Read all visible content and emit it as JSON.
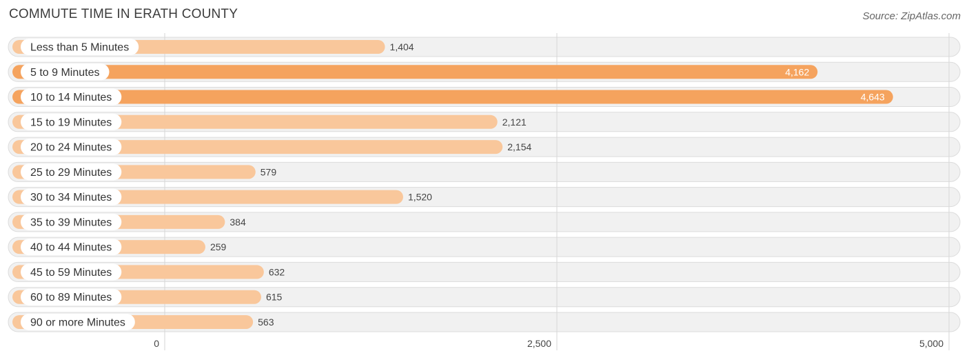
{
  "chart_data": {
    "type": "bar",
    "orientation": "horizontal",
    "title": "COMMUTE TIME IN ERATH COUNTY",
    "source": "Source: ZipAtlas.com",
    "categories": [
      "Less than 5 Minutes",
      "5 to 9 Minutes",
      "10 to 14 Minutes",
      "15 to 19 Minutes",
      "20 to 24 Minutes",
      "25 to 29 Minutes",
      "30 to 34 Minutes",
      "35 to 39 Minutes",
      "40 to 44 Minutes",
      "45 to 59 Minutes",
      "60 to 89 Minutes",
      "90 or more Minutes"
    ],
    "values": [
      1404,
      4162,
      4643,
      2121,
      2154,
      579,
      1520,
      384,
      259,
      632,
      615,
      563
    ],
    "value_labels": [
      "1,404",
      "4,162",
      "4,643",
      "2,121",
      "2,154",
      "579",
      "1,520",
      "384",
      "259",
      "632",
      "615",
      "563"
    ],
    "xlim": [
      0,
      5000
    ],
    "xticks": [
      0,
      2500,
      5000
    ],
    "xtick_labels": [
      "0",
      "2,500",
      "5,000"
    ],
    "xlabel": "",
    "ylabel": "",
    "grid": true,
    "colors": {
      "bar_light": "#f9c79b",
      "bar_strong": "#f5a35e",
      "row_background": "#f1f1f1"
    }
  }
}
